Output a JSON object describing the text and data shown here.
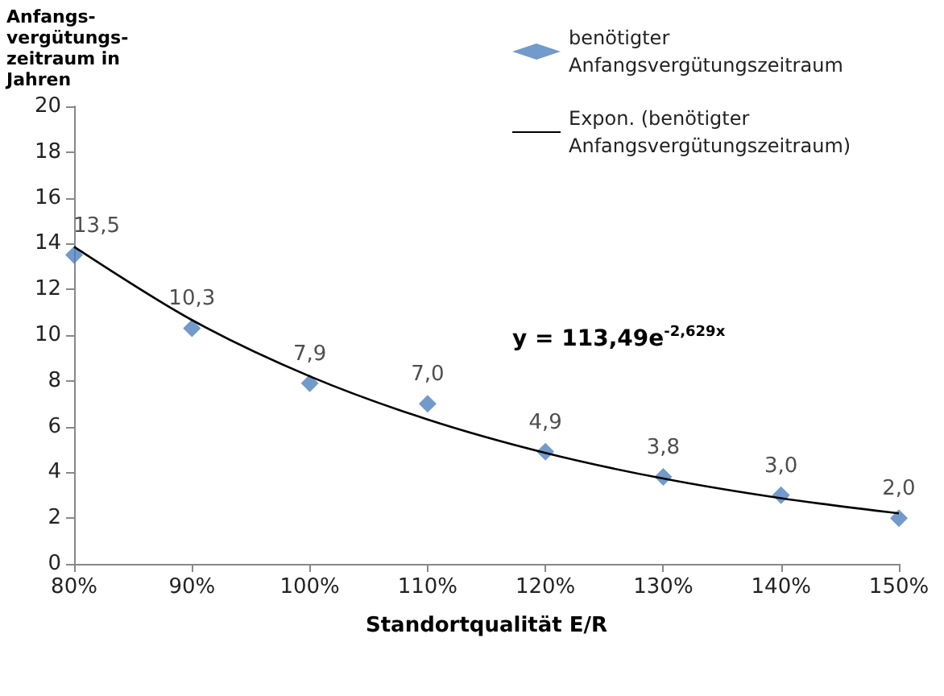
{
  "chart_data": {
    "type": "scatter",
    "xlabel": "Standortqualität E/R",
    "ylabel": "Anfangs-\nvergütungs-\nzeitraum in\nJahren",
    "x": [
      0.8,
      0.9,
      1.0,
      1.1,
      1.2,
      1.3,
      1.4,
      1.5
    ],
    "series": [
      {
        "name": "benötigter Anfangsvergütungszeitraum",
        "color": "#4f81bd",
        "marker": "diamond",
        "values": [
          13.5,
          10.3,
          7.9,
          7.0,
          4.9,
          3.8,
          3.0,
          2.0
        ],
        "value_labels": [
          "13,5",
          "10,3",
          "7,9",
          "7,0",
          "4,9",
          "3,8",
          "3,0",
          "2,0"
        ]
      },
      {
        "name": "Expon. (benötigter Anfangsvergütungszeitraum)",
        "type": "line",
        "color": "#000000",
        "marker": "none",
        "line_style": "solid",
        "x": [
          0.8,
          0.9,
          1.0,
          1.1,
          1.2,
          1.3,
          1.4,
          1.5
        ],
        "values": [
          13.86,
          10.66,
          8.2,
          6.31,
          4.85,
          3.73,
          2.87,
          2.21
        ]
      }
    ],
    "xlim": [
      0.8,
      1.5
    ],
    "xticks": [
      {
        "value": 0.8,
        "label": "80%"
      },
      {
        "value": 0.9,
        "label": "90%"
      },
      {
        "value": 1.0,
        "label": "100%"
      },
      {
        "value": 1.1,
        "label": "110%"
      },
      {
        "value": 1.2,
        "label": "120%"
      },
      {
        "value": 1.3,
        "label": "130%"
      },
      {
        "value": 1.4,
        "label": "140%"
      },
      {
        "value": 1.5,
        "label": "150%"
      }
    ],
    "ylim": [
      0,
      20
    ],
    "yticks": [
      0,
      2,
      4,
      6,
      8,
      10,
      12,
      14,
      16,
      18,
      20
    ],
    "grid": false,
    "legend": "top right",
    "annotations": [
      "y = 113,49e$^{-2,629x}$"
    ]
  }
}
